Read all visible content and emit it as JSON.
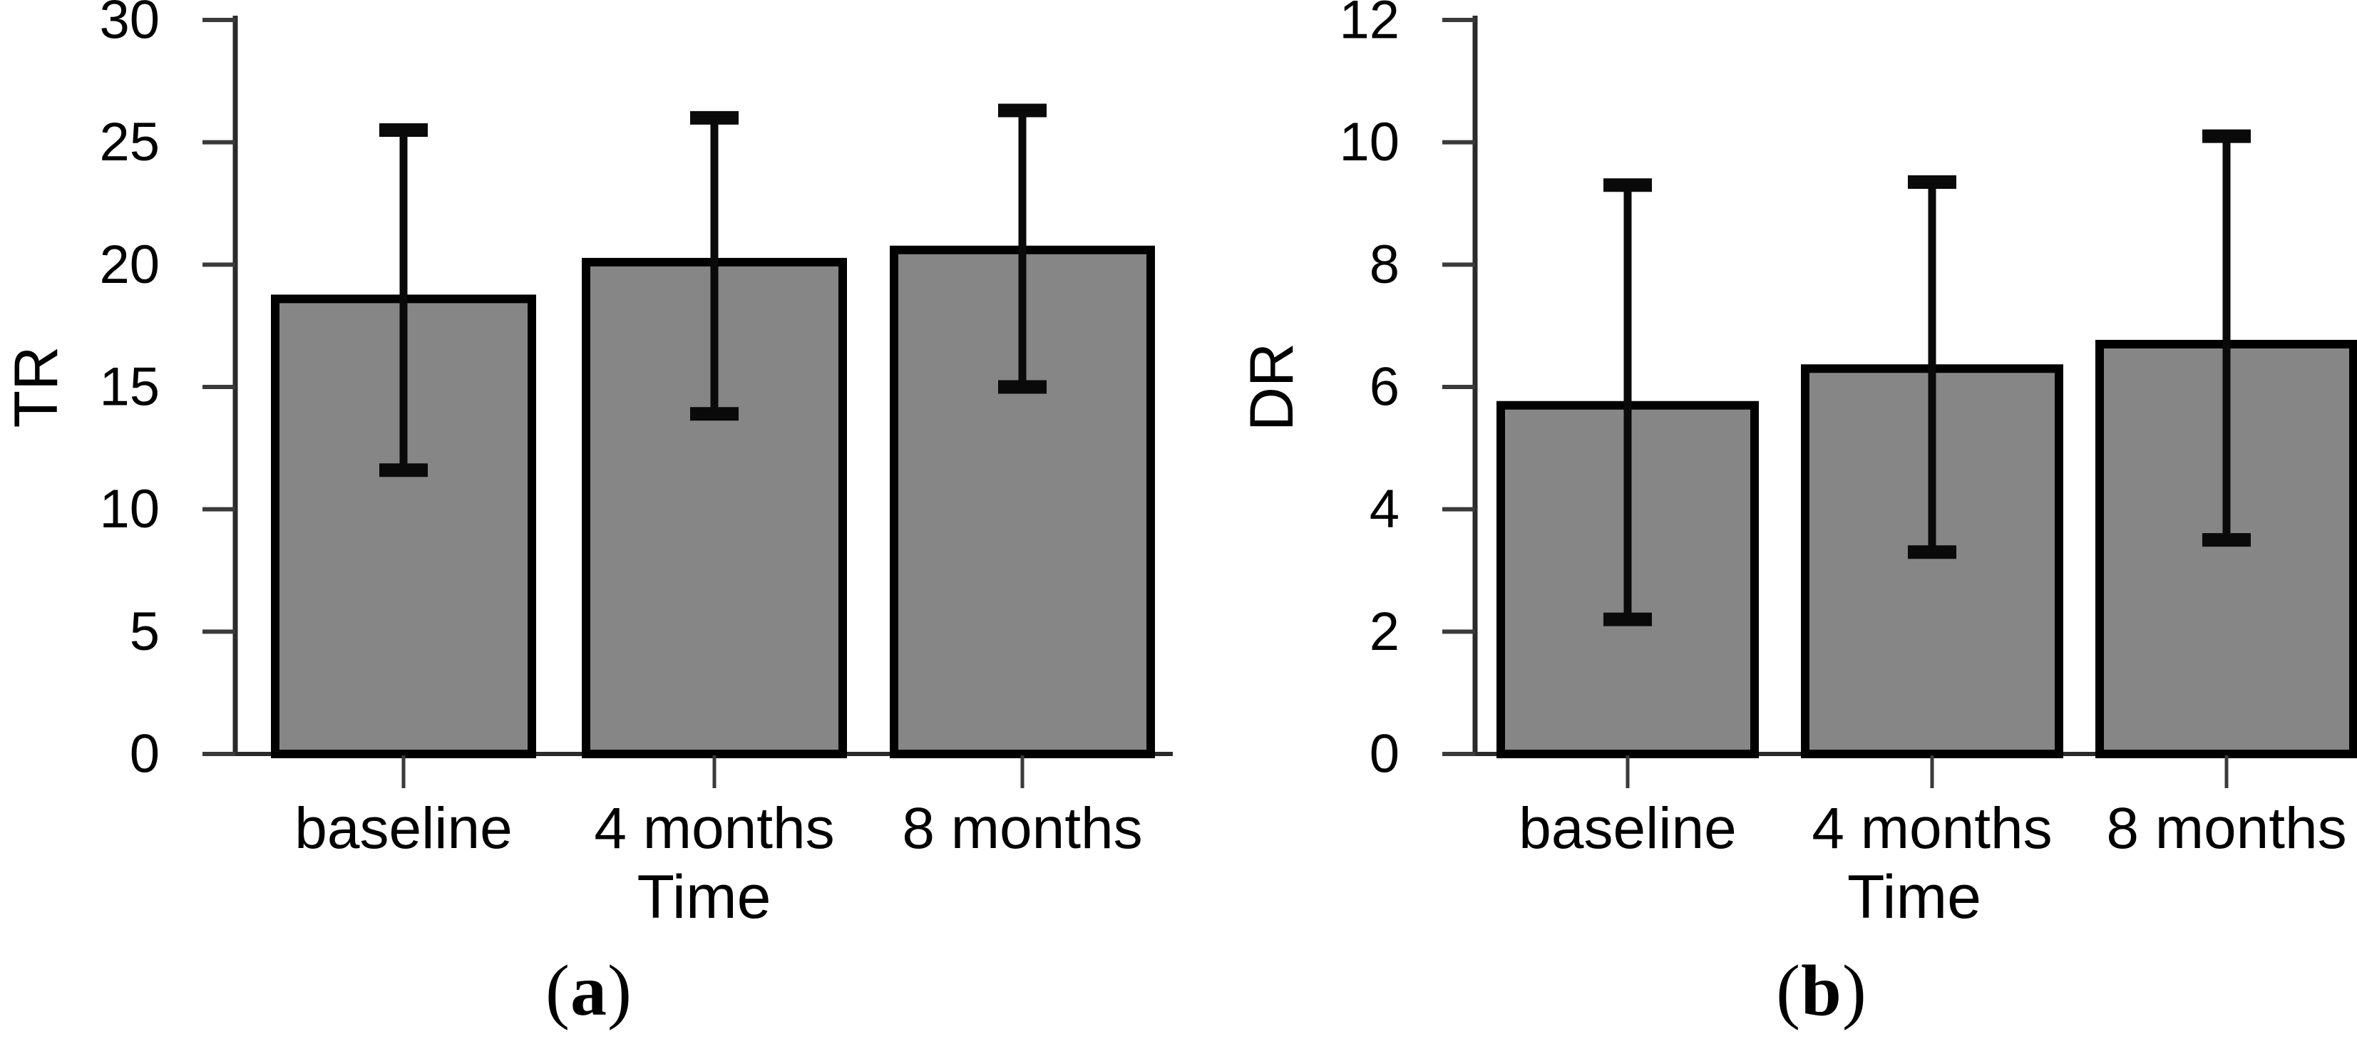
{
  "figure": {
    "background": "#ffffff",
    "bar_fill": "#868686",
    "bar_border": "#000000",
    "axis_color": "#2a2a2a",
    "tick_color": "#3a3a3a",
    "error_color": "#0a0a0a"
  },
  "chart_data": [
    {
      "type": "bar",
      "panel_id": "a",
      "caption_open": "(",
      "caption_letter": "a",
      "caption_close": ")",
      "title": "",
      "xlabel": "Time",
      "ylabel": "TR",
      "categories": [
        "baseline",
        "4 months",
        "8 months"
      ],
      "values": [
        18.6,
        20.1,
        20.6
      ],
      "error_upper": [
        25.5,
        26.0,
        26.3
      ],
      "error_lower": [
        11.6,
        13.9,
        15.0
      ],
      "ylim": [
        0,
        30
      ],
      "yticks": [
        0,
        5,
        10,
        15,
        20,
        25,
        30
      ],
      "grid": false,
      "legend": null
    },
    {
      "type": "bar",
      "panel_id": "b",
      "caption_open": "(",
      "caption_letter": "b",
      "caption_close": ")",
      "title": "",
      "xlabel": "Time",
      "ylabel": "DR",
      "categories": [
        "baseline",
        "4 months",
        "8 months"
      ],
      "values": [
        5.7,
        6.3,
        6.7
      ],
      "error_upper": [
        9.3,
        9.35,
        10.1
      ],
      "error_lower": [
        2.2,
        3.3,
        3.5
      ],
      "ylim": [
        0,
        12
      ],
      "yticks": [
        0,
        2,
        4,
        6,
        8,
        10,
        12
      ],
      "grid": false,
      "legend": null
    }
  ]
}
